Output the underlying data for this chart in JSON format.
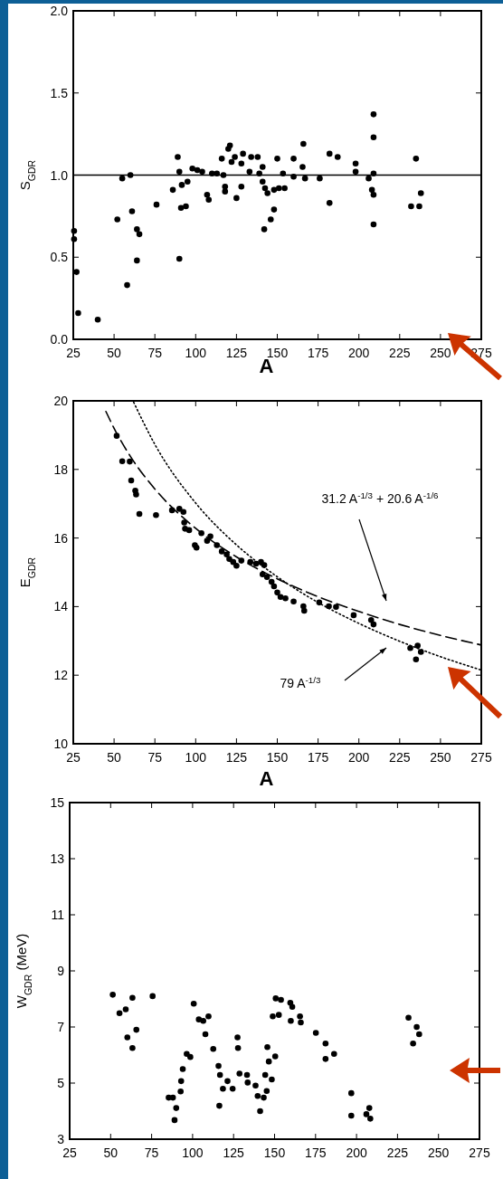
{
  "chart_data": [
    {
      "type": "scatter",
      "ylabel": "S$_{GDR}$",
      "xlabel": "A",
      "xlim": [
        25,
        275
      ],
      "xticks": [
        25,
        50,
        75,
        100,
        125,
        150,
        175,
        200,
        225,
        250,
        275
      ],
      "ylim": [
        0,
        2
      ],
      "yticks": [
        {
          "value": 0,
          "label": "0.0"
        },
        {
          "value": 0.5,
          "label": "0.5"
        },
        {
          "value": 1,
          "label": "1.0"
        },
        {
          "value": 1.5,
          "label": "1.5"
        },
        {
          "value": 2,
          "label": "2.0"
        }
      ],
      "ref_lines": [
        {
          "axis": "y",
          "value": 1,
          "color": "#000000",
          "line_style": "solid"
        }
      ],
      "series": [
        {
          "marker": "circle",
          "color": "#000000",
          "x": [
            25.5,
            25.5,
            27,
            28,
            40,
            52,
            55,
            60,
            58,
            61,
            64,
            64,
            65.5,
            76,
            86,
            89,
            90,
            90,
            91.5,
            91,
            94,
            95,
            98,
            101,
            104,
            107,
            108,
            110,
            113,
            116,
            117,
            118,
            118,
            120,
            121,
            122,
            124,
            125,
            128,
            128,
            129,
            133,
            134,
            138,
            139,
            141,
            141,
            142,
            142.5,
            144,
            146,
            148,
            148,
            150,
            151,
            153.5,
            154.5,
            160,
            160,
            165.5,
            166,
            167,
            176,
            182,
            182,
            187,
            198,
            198,
            206,
            208,
            209,
            209,
            209,
            209,
            209,
            232,
            235,
            237,
            238
          ],
          "values": [
            0.61,
            0.66,
            0.41,
            0.16,
            0.12,
            0.73,
            0.98,
            1.0,
            0.33,
            0.78,
            0.48,
            0.67,
            0.64,
            0.82,
            0.91,
            1.11,
            1.02,
            0.49,
            0.94,
            0.8,
            0.81,
            0.96,
            1.04,
            1.03,
            1.02,
            0.88,
            0.85,
            1.01,
            1.01,
            1.1,
            1.0,
            0.93,
            0.9,
            1.16,
            1.18,
            1.08,
            1.11,
            0.86,
            1.07,
            0.93,
            1.13,
            1.02,
            1.11,
            1.11,
            1.01,
            1.05,
            0.96,
            0.67,
            0.92,
            0.89,
            0.73,
            0.91,
            0.79,
            1.1,
            0.92,
            1.01,
            0.92,
            0.99,
            1.1,
            1.05,
            1.19,
            0.98,
            0.98,
            1.13,
            0.83,
            1.11,
            1.07,
            1.02,
            0.98,
            0.91,
            1.37,
            1.23,
            1.01,
            0.88,
            0.7,
            0.81,
            1.1,
            0.81,
            0.89
          ]
        }
      ]
    },
    {
      "type": "scatter",
      "ylabel": "E$_{GDR}$",
      "xlabel": "A",
      "xlim": [
        25,
        275
      ],
      "xticks": [
        25,
        50,
        75,
        100,
        125,
        150,
        175,
        200,
        225,
        250,
        275
      ],
      "ylim": [
        10,
        20
      ],
      "yticks": [
        10,
        12,
        14,
        16,
        18,
        20
      ],
      "annotations": [
        "31.2 A$^{-1/3}$ + 20.6 A$^{-1/6}$",
        "79 A$^{-1/3}$"
      ],
      "series": [
        {
          "marker": "circle",
          "color": "#000000",
          "x": [
            51.6,
            55,
            59.6,
            60.5,
            63,
            63.5,
            65.5,
            75.7,
            85.5,
            90,
            92.5,
            93,
            93.5,
            96,
            99.5,
            100.5,
            103.5,
            107,
            109,
            113,
            116,
            119,
            120.6,
            123,
            125,
            128,
            133.5,
            137,
            140,
            142,
            141,
            143.7,
            146.5,
            148,
            150,
            152,
            155,
            160,
            166,
            166.5,
            175.7,
            181.6,
            186,
            196.8,
            207.5,
            209,
            231.5,
            236,
            235,
            238
          ],
          "values": [
            18.98,
            18.24,
            18.23,
            17.68,
            17.38,
            17.27,
            16.7,
            16.67,
            16.81,
            16.85,
            16.76,
            16.45,
            16.27,
            16.23,
            15.79,
            15.72,
            16.14,
            15.92,
            16.05,
            15.79,
            15.61,
            15.52,
            15.39,
            15.3,
            15.19,
            15.34,
            15.3,
            15.25,
            15.3,
            15.21,
            14.94,
            14.86,
            14.72,
            14.59,
            14.41,
            14.28,
            14.24,
            14.15,
            14.01,
            13.88,
            14.12,
            14.01,
            13.99,
            13.75,
            13.61,
            13.48,
            12.79,
            12.86,
            12.46,
            12.68
          ]
        },
        {
          "type": "line",
          "line_style": "dashed",
          "color": "#000000",
          "x": [
            45,
            50,
            60,
            75,
            100,
            125,
            150,
            175,
            200,
            225,
            250,
            275
          ],
          "values": [
            19.69,
            19.2,
            18.38,
            17.43,
            16.28,
            15.45,
            14.81,
            14.29,
            13.86,
            13.48,
            13.16,
            12.88
          ]
        },
        {
          "type": "line",
          "line_style": "dotted",
          "color": "#000000",
          "x": [
            62,
            75,
            100,
            125,
            150,
            175,
            200,
            225,
            250,
            275
          ],
          "values": [
            19.96,
            18.73,
            17.02,
            15.8,
            14.87,
            14.12,
            13.51,
            12.99,
            12.54,
            12.15
          ]
        }
      ]
    },
    {
      "type": "scatter",
      "ylabel": "W$_{GDR}$ (MeV)",
      "xlim": [
        25,
        275
      ],
      "xticks": [
        25,
        50,
        75,
        100,
        125,
        150,
        175,
        200,
        225,
        250,
        275
      ],
      "ylim": [
        3,
        15
      ],
      "yticks": [
        3,
        5,
        7,
        9,
        11,
        13,
        15
      ],
      "series": [
        {
          "marker": "circle",
          "color": "#000000",
          "x": [
            51.3,
            55.4,
            59.2,
            60.2,
            63.3,
            63.3,
            65.7,
            75.6,
            85.4,
            88,
            89,
            90,
            92.7,
            93,
            94,
            96.4,
            98.6,
            100.7,
            103.8,
            106.5,
            107.8,
            109.7,
            112.6,
            115.8,
            116.3,
            116.7,
            118.5,
            121.3,
            124.4,
            127.4,
            127.7,
            128.6,
            133.2,
            133.6,
            138.4,
            139.7,
            141.2,
            143.4,
            144.3,
            145.2,
            145.6,
            146.5,
            148.3,
            148.9,
            150.4,
            150.7,
            152.6,
            153.9,
            159.6,
            159.9,
            160.8,
            165.5,
            166,
            175.2,
            181.1,
            181.1,
            186.3,
            196.8,
            196.8,
            206,
            207.8,
            208.4,
            231.7,
            234.5,
            236.7,
            238.2
          ],
          "values": [
            8.15,
            7.49,
            7.63,
            6.63,
            8.04,
            6.25,
            6.9,
            8.1,
            4.48,
            4.48,
            3.68,
            4.11,
            4.7,
            5.07,
            5.5,
            6.04,
            5.93,
            7.83,
            7.27,
            7.22,
            6.74,
            7.38,
            6.22,
            5.61,
            4.19,
            5.29,
            4.8,
            5.07,
            4.8,
            6.63,
            6.25,
            5.34,
            5.29,
            5.02,
            4.91,
            4.54,
            4.0,
            4.48,
            5.29,
            4.72,
            6.28,
            5.77,
            5.13,
            7.38,
            5.95,
            8.02,
            7.43,
            7.97,
            7.86,
            7.22,
            7.72,
            7.38,
            7.16,
            6.79,
            6.41,
            5.86,
            6.04,
            4.64,
            3.84,
            3.89,
            4.11,
            3.73,
            7.33,
            6.41,
            7.0,
            6.74
          ]
        }
      ]
    }
  ]
}
